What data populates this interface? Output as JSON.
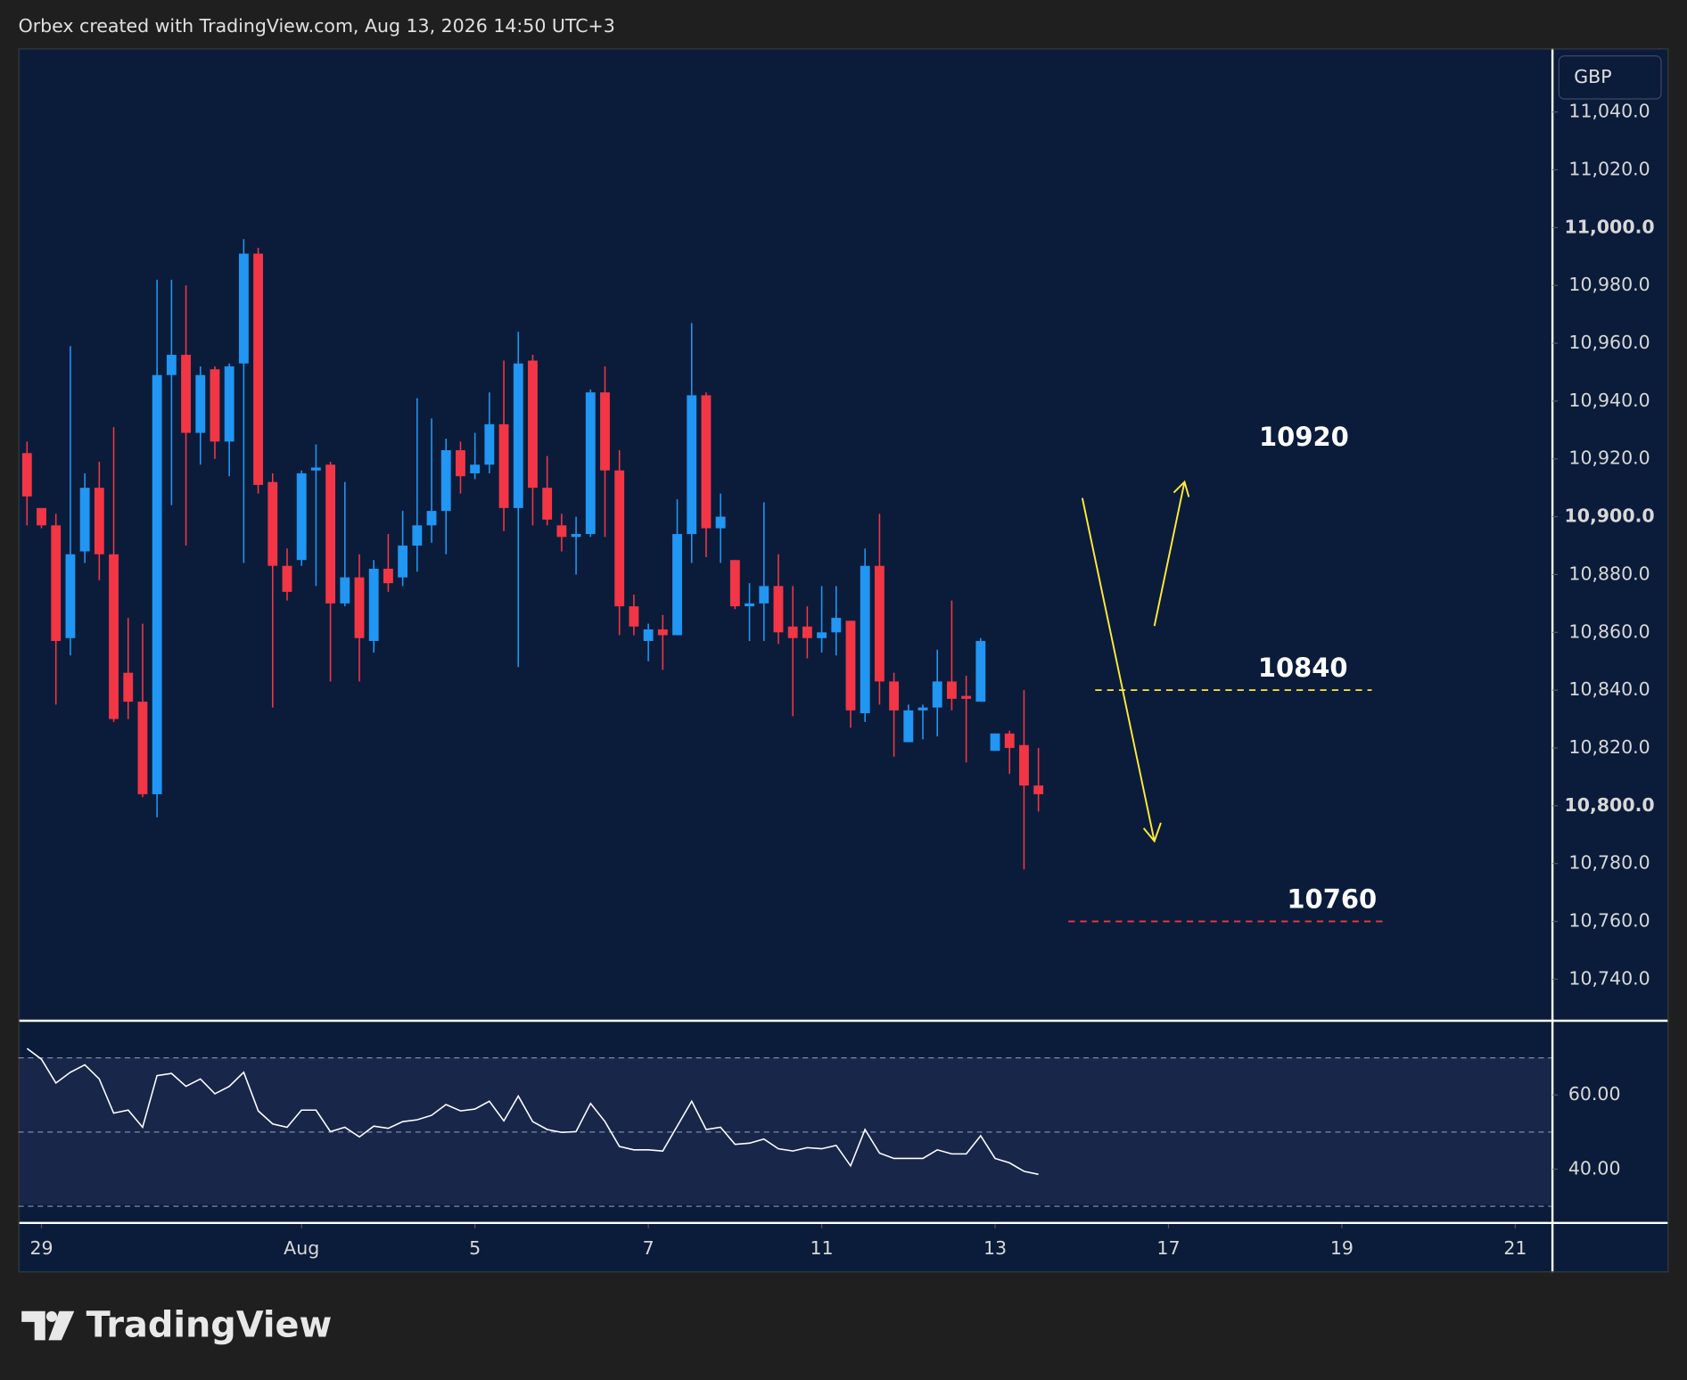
{
  "header": {
    "title": "Orbex created with TradingView.com, Aug 13, 2026 14:50 UTC+3"
  },
  "currency": "GBP",
  "footer": {
    "brand": "TradingView"
  },
  "chart_data": [
    {
      "type": "candlestick",
      "up_color": "#2196f3",
      "down_color": "#f23645",
      "open": [
        10922,
        10903,
        10897,
        10858,
        10888,
        10910,
        10887,
        10846,
        10836,
        10804,
        10949,
        10956,
        10929,
        10951,
        10926,
        10953,
        10991,
        10912,
        10883,
        10885,
        10916,
        10918,
        10870,
        10879,
        10857,
        10882,
        10879,
        10890,
        10897,
        10902,
        10923,
        10915,
        10918,
        10932,
        10903,
        10954,
        10910,
        10897,
        10893,
        10894,
        10943,
        10916,
        10869,
        10857,
        10861,
        10859,
        10894,
        10942,
        10896,
        10885,
        10869,
        10870,
        10876,
        10862,
        10862,
        10858,
        10860,
        10864,
        10832,
        10883,
        10843,
        10822,
        10833,
        10834,
        10843,
        10838,
        10836,
        10819,
        10825,
        10821,
        10807
      ],
      "high": [
        10926,
        10903,
        10901,
        10959,
        10915,
        10919,
        10931,
        10865,
        10863,
        10982,
        10982,
        10980,
        10952,
        10952,
        10953,
        10996,
        10993,
        10915,
        10889,
        10916,
        10925,
        10919,
        10912,
        10887,
        10885,
        10894,
        10902,
        10941,
        10934,
        10927,
        10926,
        10929,
        10943,
        10954,
        10964,
        10956,
        10921,
        10901,
        10900,
        10944,
        10952,
        10923,
        10873,
        10863,
        10866,
        10906,
        10967,
        10943,
        10908,
        10885,
        10877,
        10905,
        10887,
        10876,
        10869,
        10876,
        10876,
        10864,
        10889,
        10901,
        10846,
        10835,
        10835,
        10854,
        10871,
        10845,
        10858,
        10825,
        10826,
        10840,
        10820
      ],
      "low": [
        10897,
        10896,
        10835,
        10852,
        10884,
        10878,
        10829,
        10830,
        10803,
        10796,
        10904,
        10890,
        10918,
        10920,
        10914,
        10884,
        10908,
        10834,
        10871,
        10883,
        10876,
        10843,
        10869,
        10843,
        10853,
        10874,
        10876,
        10881,
        10891,
        10887,
        10908,
        10913,
        10915,
        10895,
        10848,
        10897,
        10897,
        10888,
        10880,
        10893,
        10893,
        10859,
        10859,
        10850,
        10847,
        10859,
        10884,
        10886,
        10884,
        10868,
        10857,
        10857,
        10856,
        10831,
        10851,
        10853,
        10852,
        10827,
        10829,
        10835,
        10817,
        10822,
        10823,
        10824,
        10833,
        10815,
        10836,
        10819,
        10811,
        10778,
        10798
      ],
      "close": [
        10907,
        10897,
        10857,
        10887,
        10910,
        10887,
        10830,
        10836,
        10804,
        10949,
        10956,
        10929,
        10949,
        10926,
        10952,
        10991,
        10911,
        10883,
        10874,
        10915,
        10917,
        10870,
        10879,
        10858,
        10882,
        10877,
        10890,
        10897,
        10902,
        10923,
        10914,
        10918,
        10932,
        10903,
        10953,
        10910,
        10899,
        10893,
        10894,
        10943,
        10916,
        10869,
        10862,
        10861,
        10859,
        10894,
        10942,
        10896,
        10900,
        10869,
        10870,
        10876,
        10860,
        10858,
        10858,
        10860,
        10865,
        10833,
        10883,
        10843,
        10833,
        10833,
        10834,
        10843,
        10837,
        10837,
        10857,
        10825,
        10820,
        10807,
        10804
      ],
      "xlim": [
        -0.6,
        105.5
      ],
      "xticks": [
        {
          "value": 1,
          "label": "29"
        },
        {
          "value": 19,
          "label": "Aug"
        },
        {
          "value": 31,
          "label": "5"
        },
        {
          "value": 43,
          "label": "7"
        },
        {
          "value": 55,
          "label": "11"
        },
        {
          "value": 67,
          "label": "13"
        },
        {
          "value": 79,
          "label": "17"
        },
        {
          "value": 91,
          "label": "19"
        },
        {
          "value": 103,
          "label": "21"
        }
      ],
      "ylim": [
        10726,
        11062
      ],
      "yticks": [
        {
          "value": 11040,
          "label": "11,040.0"
        },
        {
          "value": 11020,
          "label": "11,020.0"
        },
        {
          "value": 11000,
          "label": "11,000.0"
        },
        {
          "value": 10980,
          "label": "10,980.0"
        },
        {
          "value": 10960,
          "label": "10,960.0"
        },
        {
          "value": 10940,
          "label": "10,940.0"
        },
        {
          "value": 10920,
          "label": "10,920.0"
        },
        {
          "value": 10900,
          "label": "10,900.0"
        },
        {
          "value": 10880,
          "label": "10,880.0"
        },
        {
          "value": 10860,
          "label": "10,860.0"
        },
        {
          "value": 10840,
          "label": "10,840.0"
        },
        {
          "value": 10820,
          "label": "10,820.0"
        },
        {
          "value": 10800,
          "label": "10,800.0"
        },
        {
          "value": 10780,
          "label": "10,780.0"
        },
        {
          "value": 10760,
          "label": "10,760.0"
        },
        {
          "value": 10740,
          "label": "10,740.0"
        }
      ],
      "levels": [
        {
          "label": "10920",
          "value": 10920,
          "color": null
        },
        {
          "label": "10840",
          "value": 10840,
          "color": "#ffeb3b"
        },
        {
          "label": "10760",
          "value": 10760,
          "color": "#f23645"
        }
      ]
    },
    {
      "type": "line",
      "color": "#ffffff",
      "values": [
        72.5,
        69.6,
        63.2,
        66.1,
        68.1,
        64.3,
        55.1,
        55.9,
        51.3,
        65.2,
        65.8,
        62.3,
        64.3,
        60.3,
        62.3,
        66.1,
        55.7,
        52.2,
        51.3,
        55.9,
        55.9,
        50.1,
        51.3,
        48.7,
        51.6,
        51.0,
        52.8,
        53.3,
        54.5,
        57.4,
        55.7,
        56.2,
        58.3,
        53.0,
        59.7,
        52.8,
        50.7,
        49.9,
        50.1,
        57.7,
        52.8,
        46.1,
        45.2,
        45.2,
        44.9,
        51.6,
        58.3,
        50.7,
        51.3,
        46.7,
        47.0,
        48.1,
        45.5,
        44.9,
        45.8,
        45.5,
        46.4,
        40.9,
        50.7,
        44.3,
        42.9,
        42.9,
        42.9,
        45.2,
        44.1,
        44.1,
        49.0,
        42.9,
        41.7,
        39.4,
        38.6
      ],
      "ylim": [
        25.5,
        79.7
      ],
      "yticks": [
        {
          "value": 60,
          "label": "60.00"
        },
        {
          "value": 40,
          "label": "40.00"
        }
      ],
      "levels": [
        70,
        50,
        30
      ]
    }
  ]
}
